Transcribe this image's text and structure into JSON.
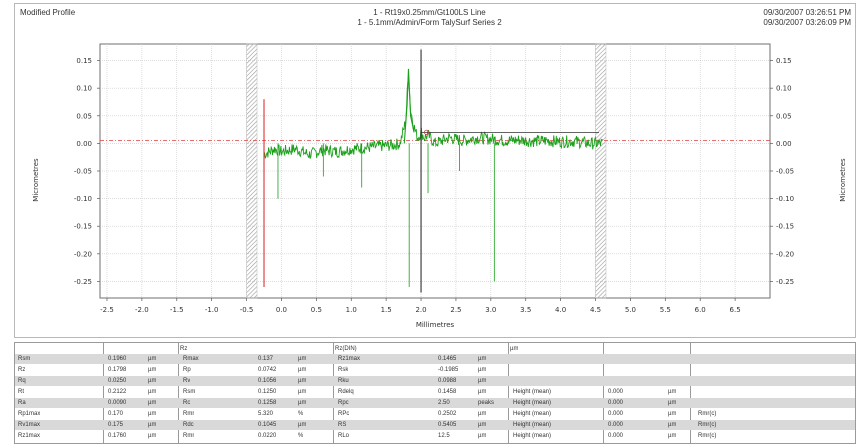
{
  "header": {
    "left": "Modified Profile",
    "center_line1": "1 - Rt19x0.25mm/Gt100LS Line",
    "center_line2": "1 - 5.1mm/Admin/Form TalySurf Series 2",
    "right_line1": "09/30/2007 03:26:51 PM",
    "right_line2": "09/30/2007 03:26:09 PM"
  },
  "colors": {
    "profile": "#1aa01a",
    "cursor_red": "#e03030",
    "reference_dashed": "#e04040",
    "cursor_black": "#303030",
    "hatch": "#9a9a9a",
    "grid": "#c8c8c8"
  },
  "chart_data": {
    "type": "line",
    "xlabel": "Millimetres",
    "ylabel_left": "Micrometres",
    "ylabel_right": "Micrometres",
    "xlim": [
      -2.6,
      7.0
    ],
    "ylim": [
      -0.28,
      0.18
    ],
    "xticks": [
      "-2.5",
      "-2.0",
      "-1.5",
      "-1.0",
      "-0.5",
      "0.0",
      "0.5",
      "1.0",
      "1.5",
      "2.0",
      "2.5",
      "3.0",
      "3.5",
      "4.0",
      "4.5",
      "5.0",
      "5.5",
      "6.0",
      "6.5"
    ],
    "yticks_left": [
      "0.15",
      "0.10",
      "0.05",
      "0.00",
      "-0.05",
      "-0.10",
      "-0.15",
      "-0.20",
      "-0.25"
    ],
    "yticks_right": [
      "0.15",
      "0.10",
      "0.05",
      "0.00",
      "-0.05",
      "-0.10",
      "-0.15",
      "-0.20",
      "-0.25"
    ],
    "grid": true,
    "hatched_bands_x": [
      [
        -0.5,
        -0.35
      ],
      [
        4.5,
        4.65
      ]
    ],
    "cursors": [
      {
        "name": "red",
        "x": -0.25,
        "y_from": -0.26,
        "y_to": 0.08
      },
      {
        "name": "black",
        "x": 2.0,
        "y_from": 0.17,
        "y_to": -0.27
      }
    ],
    "reference_line_y": 0.005,
    "series": [
      {
        "x": [
          -0.25,
          -0.1,
          0.0,
          0.2,
          0.4,
          0.6,
          0.8,
          1.0,
          1.2,
          1.4,
          1.6,
          1.7,
          1.78,
          1.82,
          1.85,
          1.9,
          1.95,
          2.0,
          2.05,
          2.1,
          2.2,
          2.4,
          2.6,
          2.8,
          3.0,
          3.2,
          3.4,
          3.6,
          3.8,
          4.0,
          4.2,
          4.4,
          4.6
        ],
        "y": [
          -0.02,
          -0.01,
          -0.015,
          -0.01,
          -0.02,
          -0.012,
          -0.015,
          -0.01,
          -0.008,
          -0.005,
          -0.003,
          0.0,
          0.04,
          0.13,
          0.06,
          0.03,
          0.01,
          0.02,
          0.01,
          0.015,
          0.0,
          0.01,
          0.005,
          0.01,
          0.008,
          0.005,
          0.006,
          0.004,
          0.005,
          0.003,
          0.004,
          0.0,
          0.0
        ]
      }
    ],
    "spikes": [
      {
        "x": 1.83,
        "y": -0.26
      },
      {
        "x": 2.1,
        "y": -0.09
      },
      {
        "x": 1.15,
        "y": -0.08
      },
      {
        "x": 3.05,
        "y": -0.25
      },
      {
        "x": -0.05,
        "y": -0.1
      },
      {
        "x": 0.6,
        "y": -0.06
      },
      {
        "x": 2.55,
        "y": -0.05
      }
    ]
  },
  "results_table": {
    "rows": [
      [
        "Rsm",
        "0.1960",
        "µm",
        "Rmax",
        "0.137",
        "µm",
        "Rz1max",
        "0.1465",
        "µm",
        "",
        "",
        "",
        ""
      ],
      [
        "Rz",
        "0.1798",
        "µm",
        "Rp",
        "0.0742",
        "µm",
        "Rsk",
        "-0.1985",
        "µm",
        "",
        "",
        "",
        ""
      ],
      [
        "Rq",
        "0.0250",
        "µm",
        "Rv",
        "0.1056",
        "µm",
        "Rku",
        "0.0988",
        "µm",
        "",
        "",
        "",
        ""
      ],
      [
        "Rt",
        "0.2122",
        "µm",
        "Rsm",
        "0.1250",
        "µm",
        "Rdelq",
        "0.1458",
        "µm",
        "Height (mean)",
        "0.000",
        "µm",
        ""
      ],
      [
        "Ra",
        "0.0090",
        "µm",
        "Rc",
        "0.1258",
        "µm",
        "Rpc",
        "2.50",
        "peaks",
        "Height (mean)",
        "0.000",
        "µm",
        ""
      ],
      [
        "Rp1max",
        "0.170",
        "µm",
        "Rmr",
        "5.320",
        "%",
        "RPc",
        "0.2502",
        "µm",
        "Height (mean)",
        "0.000",
        "µm",
        "Rmr(c)"
      ],
      [
        "Rv1max",
        "0.175",
        "µm",
        "Rdc",
        "0.1045",
        "µm",
        "RS",
        "0.5405",
        "µm",
        "Height (mean)",
        "0.000",
        "µm",
        "Rmr(c)"
      ],
      [
        "Rz1max",
        "0.1760",
        "µm",
        "Rmr",
        "0.0220",
        "%",
        "RLo",
        "12.5",
        "µm",
        "Height (mean)",
        "0.000",
        "µm",
        "Rmr(c)"
      ]
    ],
    "header_cells": [
      "Rz",
      "Rz(DIN)",
      "µm"
    ]
  }
}
